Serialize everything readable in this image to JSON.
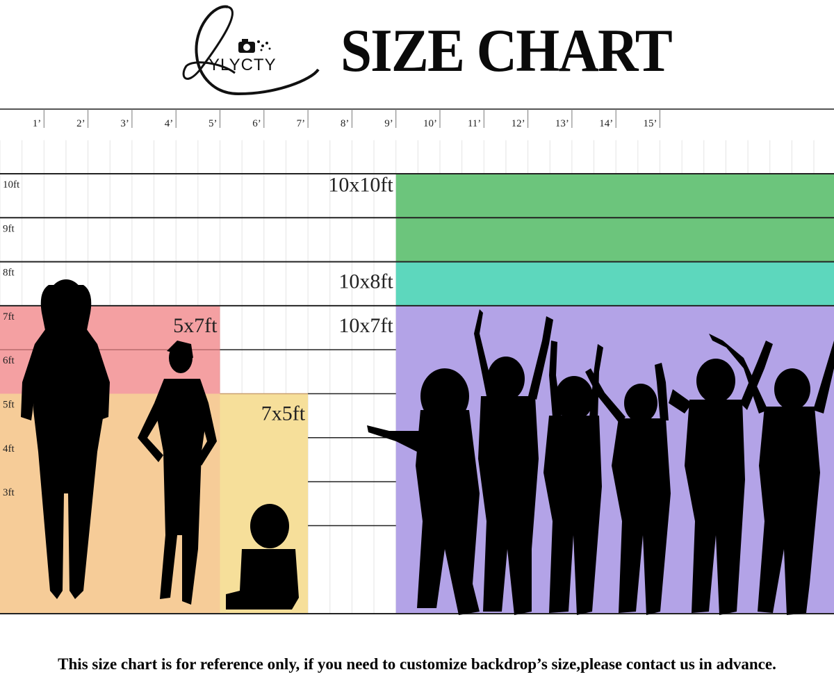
{
  "header": {
    "brand": "YLYCTY",
    "title": "SIZE CHART"
  },
  "footer": {
    "note": "This size chart is for reference only, if you need to customize backdrop’s size,please contact us in advance."
  },
  "chart_data": {
    "type": "bar",
    "x_unit": "ft",
    "y_unit": "ft",
    "xlim": [
      0,
      19
    ],
    "ylim": [
      0,
      11
    ],
    "x_ticks": [
      "1’",
      "2’",
      "3’",
      "4’",
      "5’",
      "6’",
      "7’",
      "8’",
      "9’",
      "10’",
      "11’",
      "12’",
      "13’",
      "14’",
      "15’"
    ],
    "y_ticks": [
      "3ft",
      "4ft",
      "5ft",
      "6ft",
      "7ft",
      "8ft",
      "9ft",
      "10ft"
    ],
    "backdrops": [
      {
        "label": "10x10ft",
        "x_start": 9,
        "width": 10,
        "height": 10,
        "color": "#6cc57c"
      },
      {
        "label": "10x8ft",
        "x_start": 9,
        "width": 10,
        "height": 8,
        "color": "#5dd7bd"
      },
      {
        "label": "10x7ft",
        "x_start": 9,
        "width": 10,
        "height": 7,
        "color": "#b3a3e7"
      },
      {
        "label": "5x7ft",
        "x_start": 0,
        "width": 5,
        "height": 7,
        "color": "#f4a0a2"
      },
      {
        "label": "7x5ft",
        "x_start": 0,
        "width": 7,
        "height": 5,
        "color": "#f6cc98"
      }
    ],
    "colors": {
      "row_10x10": "#6cc57c",
      "row_10x8": "#5dd7bd",
      "row_10x7": "#b3a3e7",
      "row_5x7": "#f4a0a2",
      "left_5x5": "#f6cc98",
      "seg_5_7": "#f6df9a",
      "silhouette": "#000000"
    }
  }
}
